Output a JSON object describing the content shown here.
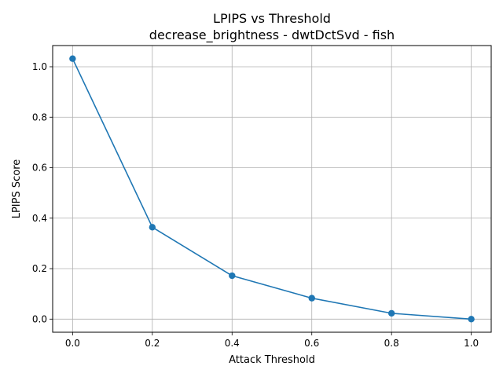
{
  "chart_data": {
    "type": "line",
    "title": "LPIPS vs Threshold",
    "subtitle": "decrease_brightness - dwtDctSvd - fish",
    "xlabel": "Attack Threshold",
    "ylabel": "LPIPS Score",
    "xlim": [
      -0.05,
      1.05
    ],
    "ylim": [
      -0.052,
      1.084
    ],
    "xticks": [
      0.0,
      0.2,
      0.4,
      0.6,
      0.8,
      1.0
    ],
    "xtick_labels": [
      "0.0",
      "0.2",
      "0.4",
      "0.6",
      "0.8",
      "1.0"
    ],
    "yticks": [
      0.0,
      0.2,
      0.4,
      0.6,
      0.8,
      1.0
    ],
    "ytick_labels": [
      "0.0",
      "0.2",
      "0.4",
      "0.6",
      "0.8",
      "1.0"
    ],
    "grid": true,
    "series": [
      {
        "x": [
          0.0,
          0.2,
          0.4,
          0.6,
          0.8,
          1.0
        ],
        "y": [
          1.032,
          0.364,
          0.172,
          0.083,
          0.023,
          0.0
        ],
        "color": "#1f77b4",
        "marker": "circle"
      }
    ]
  }
}
